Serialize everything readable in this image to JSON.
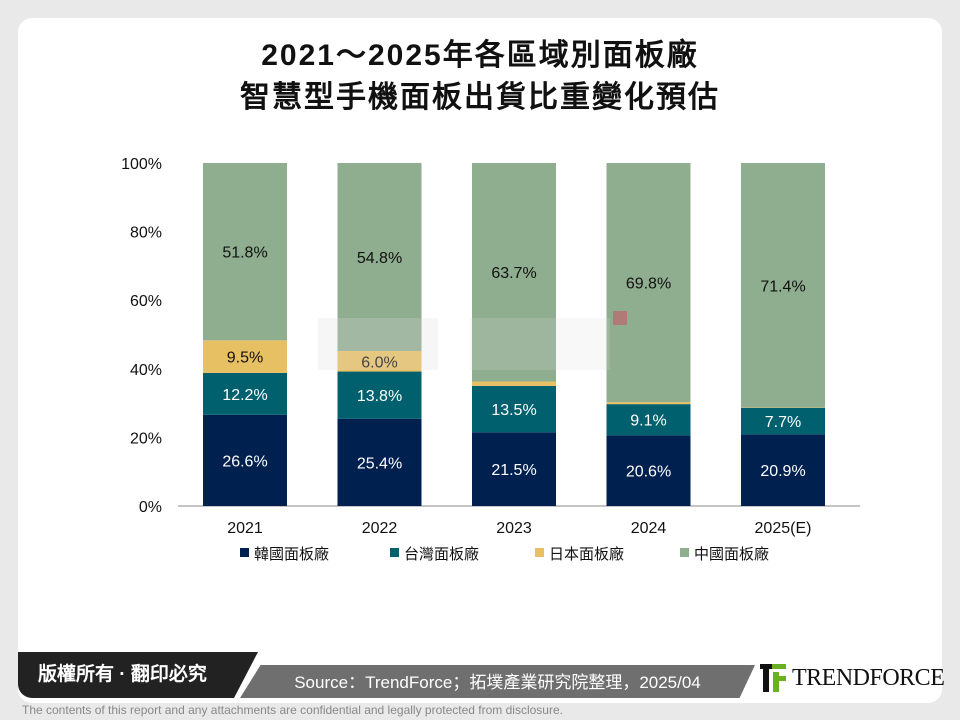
{
  "title_line1": "2021～2025年各區域別面板廠",
  "title_line2": "智慧型手機面板出貨比重變化預估",
  "chart_data": {
    "type": "bar",
    "stacked": true,
    "categories": [
      "2021",
      "2022",
      "2023",
      "2024",
      "2025(E)"
    ],
    "series": [
      {
        "name": "韓國面板廠",
        "color": "#002050",
        "values": [
          26.6,
          25.4,
          21.5,
          20.6,
          20.9
        ]
      },
      {
        "name": "台灣面板廠",
        "color": "#00606e",
        "values": [
          12.2,
          13.8,
          13.5,
          9.1,
          7.7
        ]
      },
      {
        "name": "日本面板廠",
        "color": "#e8c064",
        "values": [
          9.5,
          6.0,
          1.3,
          0.6,
          0.1
        ]
      },
      {
        "name": "中國面板廠",
        "color": "#8fad8f",
        "values": [
          51.8,
          54.8,
          63.7,
          69.8,
          71.4
        ]
      }
    ],
    "yticks": [
      "0%",
      "20%",
      "40%",
      "60%",
      "80%",
      "100%"
    ],
    "ylim": [
      0,
      100
    ],
    "legend": "bottom",
    "grid": false
  },
  "watermark": "拓墣 TRi TOPOLOGY RESEARCH INSTITUTE",
  "footer": {
    "copyright": "版權所有 · 翻印必究",
    "source": "Source：TrendForce；拓墣產業研究院整理，2025/04",
    "logo": "TRENDFORCE",
    "disclaimer": "The contents of this report and any attachments are confidential and legally protected from disclosure."
  }
}
